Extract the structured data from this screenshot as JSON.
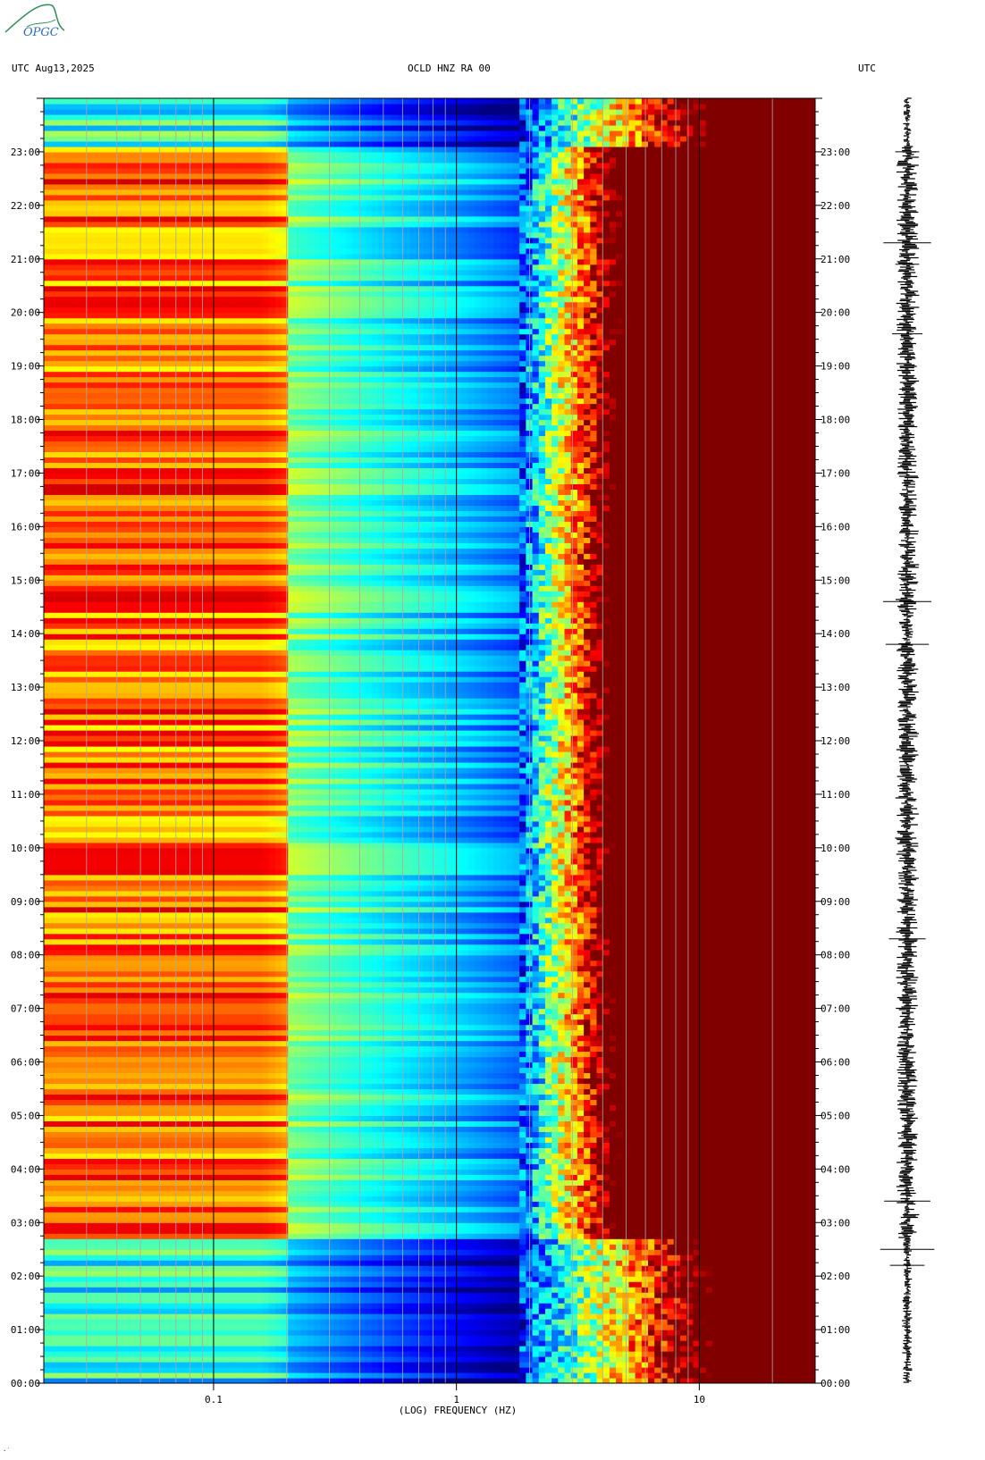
{
  "header": {
    "left": "UTC  Aug13,2025",
    "center": "OCLD HNZ RA 00",
    "right": "UTC"
  },
  "logo": {
    "text": "OPGC"
  },
  "footer": {
    "corner_mark": "·˙"
  },
  "colors": {
    "cold": "#0000b4",
    "cool": "#00a0ff",
    "mid": "#28e6c8",
    "warm": "#f0f000",
    "hot": "#ff8c00",
    "max": "#8b0000",
    "logo": "#2e8b57"
  },
  "chart_data": {
    "type": "heatmap",
    "title": "OCLD HNZ RA 00",
    "xlabel": "(LOG) FREQUENCY (HZ)",
    "x_scale": "log",
    "xlim": [
      0.02,
      30
    ],
    "x_ticks": [
      {
        "value": 0.1,
        "label": "0.1"
      },
      {
        "value": 1,
        "label": "1"
      },
      {
        "value": 10,
        "label": "10"
      }
    ],
    "ylabel": "UTC",
    "ylim": [
      "00:00",
      "24:00"
    ],
    "y_ticks": [
      "00:00",
      "01:00",
      "02:00",
      "03:00",
      "04:00",
      "05:00",
      "06:00",
      "07:00",
      "08:00",
      "09:00",
      "10:00",
      "11:00",
      "12:00",
      "13:00",
      "14:00",
      "15:00",
      "16:00",
      "17:00",
      "18:00",
      "19:00",
      "20:00",
      "21:00",
      "22:00",
      "23:00"
    ],
    "grid": true,
    "colormap": "jet",
    "waveform": "HNZ seismogram trace, 00:00 to 24:00 UTC"
  }
}
